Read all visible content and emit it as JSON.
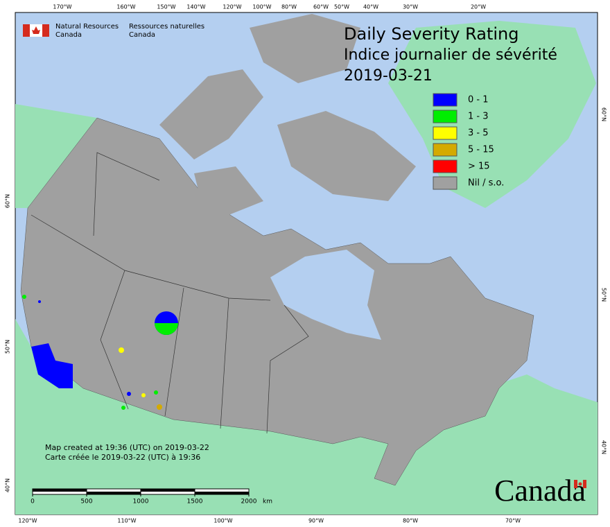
{
  "header": {
    "agency_en": [
      "Natural Resources",
      "Canada"
    ],
    "agency_fr": [
      "Ressources naturelles",
      "Canada"
    ]
  },
  "title": {
    "line1": "Daily Severity Rating",
    "line2": "Indice journalier de sévérité",
    "date": "2019-03-21"
  },
  "legend": [
    {
      "label": "0 - 1",
      "color": "#0000ff"
    },
    {
      "label": "1 - 3",
      "color": "#00ee00"
    },
    {
      "label": "3 - 5",
      "color": "#ffff00"
    },
    {
      "label": "5 - 15",
      "color": "#d4aa00"
    },
    {
      "label": "> 15",
      "color": "#ff0000"
    },
    {
      "label": "Nil / s.o.",
      "color": "#a0a0a0"
    }
  ],
  "graticule": {
    "top": [
      "170°W",
      "160°W",
      "150°W",
      "140°W",
      "120°W",
      "100°W",
      "80°W",
      "60°W",
      "50°W",
      "40°W",
      "30°W",
      "20°W"
    ],
    "bottom": [
      "120°W",
      "110°W",
      "100°W",
      "90°W",
      "80°W",
      "70°W"
    ],
    "left": [
      "60°N",
      "50°N",
      "40°N"
    ],
    "right": [
      "60°N",
      "50°N",
      "40°N"
    ]
  },
  "notes": [
    "Map created at 19:36 (UTC) on 2019-03-22",
    "Carte créée le 2019-03-22 (UTC) à 19:36"
  ],
  "scale_bar": {
    "ticks": [
      0,
      500,
      1000,
      1500,
      2000
    ],
    "unit": "km"
  },
  "wordmark": "Canada"
}
